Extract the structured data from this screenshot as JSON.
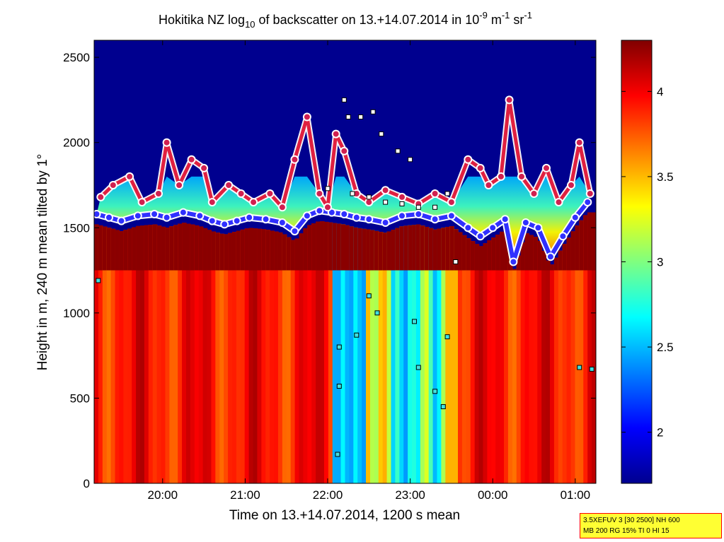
{
  "chart_data": {
    "type": "heatmap",
    "title": "Hokitika NZ log₁₀ of backscatter on 13.+14.07.2014 in 10⁻⁹ m⁻¹ sr⁻¹",
    "title_parts": {
      "a": "Hokitika NZ log",
      "a_sub": "10",
      "b": " of backscatter on 13.+14.07.2014 in 10",
      "b_sup": "-9",
      "c": " m",
      "c_sup": "-1",
      "d": " sr",
      "d_sup": "-1"
    },
    "xlabel": "Time on 13.+14.07.2014, 1200 s mean",
    "ylabel": "Height in m, 240 m mean tilted by 1°",
    "x_ticks": [
      "20:00",
      "21:00",
      "22:00",
      "23:00",
      "00:00",
      "01:00"
    ],
    "x_tick_hours": [
      20,
      21,
      22,
      23,
      24,
      25
    ],
    "xlim_hours": [
      19.17,
      25.25
    ],
    "y_ticks": [
      "0",
      "500",
      "1000",
      "1500",
      "2000",
      "2500"
    ],
    "y_tick_values": [
      0,
      500,
      1000,
      1500,
      2000,
      2500
    ],
    "ylim": [
      0,
      2600
    ],
    "colorbar": {
      "range": [
        1.7,
        4.3
      ],
      "ticks": [
        "2",
        "2.5",
        "3",
        "3.5",
        "4"
      ],
      "tick_values": [
        2,
        2.5,
        3,
        3.5,
        4
      ],
      "colormap": "jet"
    },
    "colors": {
      "low": "#00008f",
      "high": "#800000",
      "cloud_base_marker": "#3030ff",
      "cloud_base_outline": "#ffffff"
    },
    "cloud_base_trace": [
      [
        19.2,
        1580
      ],
      [
        19.35,
        1560
      ],
      [
        19.5,
        1540
      ],
      [
        19.7,
        1570
      ],
      [
        19.9,
        1580
      ],
      [
        20.05,
        1560
      ],
      [
        20.25,
        1590
      ],
      [
        20.45,
        1570
      ],
      [
        20.6,
        1540
      ],
      [
        20.75,
        1520
      ],
      [
        20.9,
        1540
      ],
      [
        21.05,
        1560
      ],
      [
        21.25,
        1550
      ],
      [
        21.45,
        1530
      ],
      [
        21.6,
        1480
      ],
      [
        21.75,
        1570
      ],
      [
        21.9,
        1600
      ],
      [
        22.05,
        1590
      ],
      [
        22.2,
        1580
      ],
      [
        22.35,
        1560
      ],
      [
        22.5,
        1550
      ],
      [
        22.7,
        1530
      ],
      [
        22.9,
        1570
      ],
      [
        23.1,
        1580
      ],
      [
        23.3,
        1550
      ],
      [
        23.5,
        1570
      ],
      [
        23.7,
        1500
      ],
      [
        23.85,
        1450
      ],
      [
        24.0,
        1500
      ],
      [
        24.15,
        1550
      ],
      [
        24.25,
        1300
      ],
      [
        24.4,
        1530
      ],
      [
        24.55,
        1500
      ],
      [
        24.7,
        1330
      ],
      [
        24.85,
        1450
      ],
      [
        25.0,
        1560
      ],
      [
        25.15,
        1650
      ]
    ],
    "upper_layer_trace": [
      [
        19.25,
        1680
      ],
      [
        19.4,
        1750
      ],
      [
        19.6,
        1800
      ],
      [
        19.75,
        1650
      ],
      [
        19.95,
        1700
      ],
      [
        20.05,
        2000
      ],
      [
        20.2,
        1750
      ],
      [
        20.35,
        1900
      ],
      [
        20.5,
        1850
      ],
      [
        20.6,
        1650
      ],
      [
        20.8,
        1750
      ],
      [
        20.95,
        1700
      ],
      [
        21.1,
        1650
      ],
      [
        21.3,
        1700
      ],
      [
        21.45,
        1620
      ],
      [
        21.6,
        1900
      ],
      [
        21.75,
        2150
      ],
      [
        21.9,
        1700
      ],
      [
        22.0,
        1620
      ],
      [
        22.1,
        2050
      ],
      [
        22.2,
        1950
      ],
      [
        22.35,
        1700
      ],
      [
        22.5,
        1650
      ],
      [
        22.7,
        1720
      ],
      [
        22.9,
        1680
      ],
      [
        23.1,
        1640
      ],
      [
        23.3,
        1700
      ],
      [
        23.5,
        1650
      ],
      [
        23.7,
        1900
      ],
      [
        23.85,
        1850
      ],
      [
        23.95,
        1750
      ],
      [
        24.1,
        1800
      ],
      [
        24.2,
        2250
      ],
      [
        24.35,
        1800
      ],
      [
        24.5,
        1700
      ],
      [
        24.65,
        1850
      ],
      [
        24.8,
        1650
      ],
      [
        24.95,
        1750
      ],
      [
        25.05,
        2000
      ],
      [
        25.18,
        1700
      ]
    ],
    "aerosol_layer_markers": [
      [
        19.22,
        1190
      ],
      [
        22.12,
        170
      ],
      [
        22.14,
        570
      ],
      [
        22.14,
        800
      ],
      [
        22.35,
        870
      ],
      [
        22.5,
        1100
      ],
      [
        22.6,
        1000
      ],
      [
        23.05,
        950
      ],
      [
        23.1,
        680
      ],
      [
        23.3,
        540
      ],
      [
        23.4,
        450
      ],
      [
        23.45,
        860
      ],
      [
        25.05,
        680
      ],
      [
        25.2,
        670
      ]
    ],
    "box_markers_upper": [
      [
        22.2,
        2250
      ],
      [
        22.25,
        2150
      ],
      [
        22.4,
        2150
      ],
      [
        22.55,
        2180
      ],
      [
        22.65,
        2050
      ],
      [
        22.85,
        1950
      ],
      [
        23.0,
        1900
      ],
      [
        22.0,
        1730
      ],
      [
        22.3,
        1700
      ],
      [
        22.5,
        1680
      ],
      [
        22.7,
        1650
      ],
      [
        22.9,
        1640
      ],
      [
        23.1,
        1620
      ],
      [
        23.3,
        1620
      ],
      [
        23.45,
        1700
      ],
      [
        23.55,
        1300
      ]
    ]
  },
  "info_box": {
    "line1": "3.5XEFUV 3 [30 2500] NH 600",
    "line2": "MB 200 RG 15% TI 0 HI 15"
  }
}
